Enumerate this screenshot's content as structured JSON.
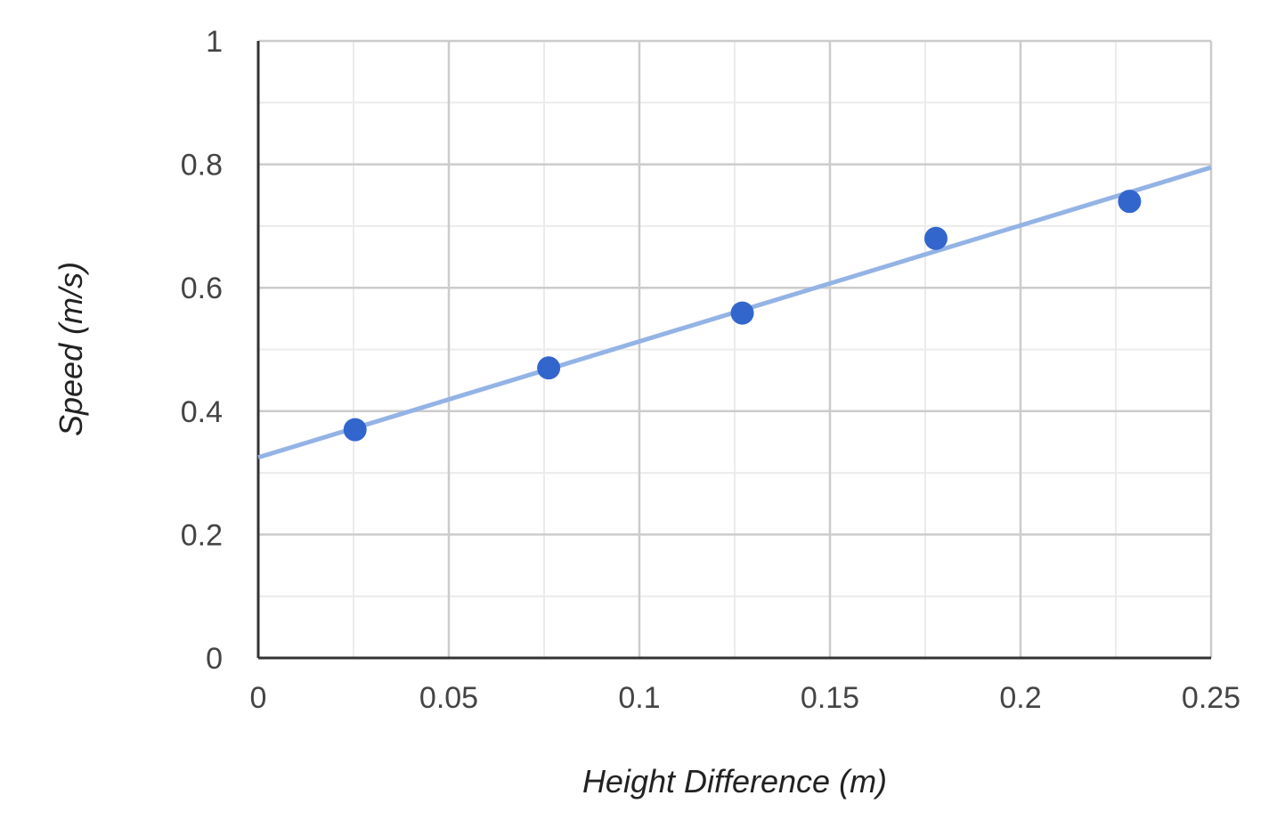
{
  "chart_data": {
    "type": "scatter",
    "title": "",
    "xlabel": "Height Difference (m)",
    "ylabel": "Speed (m/s)",
    "xlim": [
      0,
      0.25
    ],
    "ylim": [
      0,
      1
    ],
    "x_ticks": [
      "0",
      "0.05",
      "0.1",
      "0.15",
      "0.2",
      "0.25"
    ],
    "y_ticks": [
      "0",
      "0.2",
      "0.4",
      "0.6",
      "0.8",
      "1"
    ],
    "x_tick_values": [
      0,
      0.05,
      0.1,
      0.15,
      0.2,
      0.25
    ],
    "y_tick_values": [
      0,
      0.2,
      0.4,
      0.6,
      0.8,
      1
    ],
    "grid": true,
    "legend": "none",
    "series": [
      {
        "x": [
          0.0254,
          0.0762,
          0.127,
          0.1778,
          0.2286
        ],
        "values": [
          0.37,
          0.47,
          0.559,
          0.68,
          0.74
        ],
        "color": "#3366cc"
      }
    ],
    "trendline": {
      "type": "linear",
      "x": [
        0,
        0.25
      ],
      "y": [
        0.325,
        0.795
      ],
      "color": "#94b3e5"
    },
    "colors": {
      "grid_major": "#cccccc",
      "grid_minor": "#ebebeb",
      "axis": "#333333"
    }
  }
}
